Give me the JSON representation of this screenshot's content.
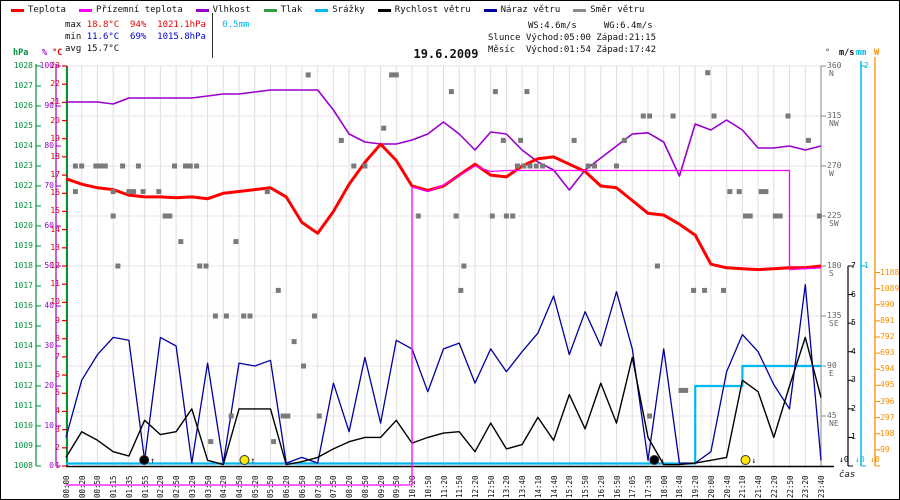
{
  "header": {
    "legend": [
      {
        "label": "Teplota",
        "color": "#ff0000"
      },
      {
        "label": "Přízemní teplota",
        "color": "#ff00ff"
      },
      {
        "label": "Vlhkost",
        "color": "#9900cc"
      },
      {
        "label": "Tlak",
        "color": "#2e9e40"
      },
      {
        "label": "Srážky",
        "color": "#00b8f0"
      },
      {
        "label": "Rychlost větru",
        "color": "#000000"
      },
      {
        "label": "Náraz větru",
        "color": "#0000a0"
      },
      {
        "label": "Směr větru",
        "color": "#8a8a8a"
      }
    ],
    "stats": {
      "max_label": "max",
      "max_temp": "18.8°C",
      "max_hum": "94%",
      "max_pres": "1021.1hPa",
      "max_rain": "0.5mm",
      "min_label": "min",
      "min_temp": "11.6°C",
      "min_hum": "69%",
      "min_pres": "1015.8hPa",
      "avg_label": "avg",
      "avg_temp": "15.7°C"
    },
    "wind_stats": {
      "ws": "WS:4.6m/s",
      "wg": "WG:6.4m/s"
    },
    "sun": {
      "name": "Slunce",
      "rise": "Východ:05:00",
      "set": "Západ:21:15"
    },
    "moon": {
      "name": "Měsíc",
      "rise": "Východ:01:54",
      "set": "Západ:17:42"
    },
    "title": "19.6.2009"
  },
  "axes": {
    "hpa": {
      "unit": "hPa",
      "color": "#008f3c",
      "values": [
        1028,
        1027,
        1026,
        1025,
        1024,
        1023,
        1022,
        1021,
        1020,
        1019,
        1018,
        1017,
        1016,
        1015,
        1014,
        1013,
        1012,
        1011,
        1010,
        1009,
        1008
      ]
    },
    "humidity": {
      "unit": "%",
      "color": "#9900cc",
      "values": [
        100,
        90,
        80,
        70,
        60,
        50,
        40,
        30,
        20,
        10,
        0
      ]
    },
    "celsius": {
      "unit": "°C",
      "color": "#e00000",
      "values": [
        23,
        22,
        21,
        20,
        19,
        18,
        17,
        16,
        15,
        14,
        13,
        12,
        11,
        10,
        9,
        8,
        7,
        6,
        5,
        4,
        3,
        2,
        1
      ]
    },
    "direction": {
      "unit": "°",
      "color": "#666666",
      "values": [
        [
          360,
          "N"
        ],
        [
          315,
          "NW"
        ],
        [
          270,
          "W"
        ],
        [
          225,
          "SW"
        ],
        [
          180,
          "S"
        ],
        [
          135,
          "SE"
        ],
        [
          90,
          "E"
        ],
        [
          45,
          "NE"
        ]
      ]
    },
    "wind_ms": {
      "unit": "m/s",
      "color": "#000000",
      "values": [
        7,
        6,
        5,
        4,
        3,
        2,
        1
      ]
    },
    "rain_mm": {
      "unit": "mm",
      "color": "#00b8f0",
      "values": [
        2,
        1
      ]
    },
    "radiation_w": {
      "unit": "W",
      "color": "#ff8c00",
      "values": [
        1188,
        1089,
        990,
        891,
        792,
        693,
        594,
        495,
        396,
        297,
        198,
        99
      ]
    },
    "time": {
      "unit": "čas",
      "labels": [
        "00:00",
        "00:20",
        "00:50",
        "01:15",
        "01:35",
        "01:55",
        "02:20",
        "02:50",
        "03:20",
        "03:50",
        "04:20",
        "04:50",
        "05:20",
        "05:50",
        "06:20",
        "06:50",
        "07:20",
        "07:50",
        "08:20",
        "08:50",
        "09:20",
        "09:50",
        "10:20",
        "10:50",
        "11:20",
        "11:50",
        "12:20",
        "12:50",
        "13:20",
        "13:40",
        "14:10",
        "14:40",
        "15:20",
        "15:50",
        "16:20",
        "16:50",
        "17:05",
        "17:30",
        "18:00",
        "18:40",
        "19:20",
        "20:00",
        "20:40",
        "21:10",
        "21:40",
        "22:20",
        "22:50",
        "23:20",
        "23:40"
      ]
    },
    "axis_zero_labels": [
      {
        "text": "↓0",
        "color": "#000000"
      },
      {
        "text": "↓0",
        "color": "#00b8f0"
      },
      {
        "text": "↓0",
        "color": "#ff8c00"
      }
    ]
  },
  "chart_data": {
    "type": "line",
    "title": "19.6.2009",
    "x_labels": [
      "00:00",
      "00:20",
      "00:50",
      "01:15",
      "01:35",
      "01:55",
      "02:20",
      "02:50",
      "03:20",
      "03:50",
      "04:20",
      "04:50",
      "05:20",
      "05:50",
      "06:20",
      "06:50",
      "07:20",
      "07:50",
      "08:20",
      "08:50",
      "09:20",
      "09:50",
      "10:20",
      "10:50",
      "11:20",
      "11:50",
      "12:20",
      "12:50",
      "13:20",
      "13:40",
      "14:10",
      "14:40",
      "15:20",
      "15:50",
      "16:20",
      "16:50",
      "17:05",
      "17:30",
      "18:00",
      "18:40",
      "19:20",
      "20:00",
      "20:40",
      "21:10",
      "21:40",
      "22:20",
      "22:50",
      "23:20",
      "23:40"
    ],
    "axis_ranges": {
      "celsius": [
        1,
        23
      ],
      "humidity_pct": [
        0,
        100
      ],
      "pressure_hpa": [
        1008,
        1028
      ],
      "direction_deg": [
        0,
        360
      ],
      "wind_ms": [
        0,
        7
      ],
      "rain_mm": [
        0,
        2
      ],
      "radiation_w": [
        0,
        1188
      ]
    },
    "series": [
      {
        "name": "Teplota",
        "unit": "°C",
        "color": "#ff0000",
        "width": 3,
        "values": [
          16.8,
          16.5,
          16.3,
          16.2,
          15.9,
          15.8,
          15.8,
          15.75,
          15.8,
          15.7,
          16.0,
          16.1,
          16.2,
          16.3,
          15.8,
          14.4,
          13.8,
          15.0,
          16.5,
          17.7,
          18.7,
          17.8,
          16.4,
          16.15,
          16.4,
          17.0,
          17.6,
          17.0,
          16.9,
          17.5,
          17.9,
          18.0,
          17.6,
          17.2,
          16.4,
          16.3,
          15.6,
          14.9,
          14.8,
          14.3,
          13.7,
          12.1,
          11.9,
          11.85,
          11.8,
          11.85,
          11.9,
          11.9,
          12.0
        ]
      },
      {
        "name": "Přízemní teplota",
        "unit": "°C",
        "color": "#ff00ff",
        "width": 1.3,
        "values": [
          null,
          null,
          null,
          null,
          null,
          null,
          null,
          null,
          null,
          null,
          null,
          null,
          null,
          null,
          null,
          null,
          null,
          null,
          null,
          null,
          null,
          null,
          16.35,
          16.1,
          16.45,
          16.95,
          17.5,
          17.2,
          17.25,
          17.25,
          17.25,
          17.25,
          17.25,
          17.25,
          17.25,
          17.25,
          17.25,
          17.25,
          17.25,
          17.25,
          17.25,
          17.25,
          17.25,
          17.25,
          17.25,
          17.25,
          11.8,
          11.85,
          11.9
        ]
      },
      {
        "name": "Vlhkost",
        "unit": "%",
        "color": "#9900cc",
        "width": 1.6,
        "values": [
          91,
          91,
          91,
          90.5,
          92,
          92,
          92,
          92,
          92,
          92.5,
          93,
          93,
          93.5,
          94,
          94,
          94,
          94,
          89,
          83,
          81,
          80.5,
          80.5,
          81.5,
          83,
          86,
          83,
          79,
          83.5,
          83,
          79,
          76,
          74,
          69,
          74,
          77,
          80,
          83,
          83.3,
          81,
          72.5,
          85.5,
          84,
          86.5,
          84,
          79.5,
          79.5,
          80,
          79,
          80
        ]
      },
      {
        "name": "Rychlost větru",
        "unit": "m/s",
        "color": "#000000",
        "width": 1.4,
        "values": [
          0.3,
          1.2,
          0.9,
          0.5,
          0.35,
          1.6,
          1.1,
          1.2,
          2.0,
          0.2,
          0.05,
          2.0,
          2.0,
          2.0,
          0.05,
          0.15,
          0.3,
          0.6,
          0.85,
          1.0,
          1.0,
          1.6,
          0.8,
          1.0,
          1.15,
          1.2,
          0.5,
          1.5,
          0.6,
          0.75,
          1.7,
          0.9,
          2.5,
          1.3,
          2.9,
          1.5,
          3.8,
          1.0,
          0.05,
          0.05,
          0.1,
          0.2,
          0.3,
          3.0,
          2.6,
          1.0,
          2.8,
          4.5,
          2.4
        ]
      },
      {
        "name": "Náraz větru",
        "unit": "m/s",
        "color": "#0000a0",
        "width": 1.3,
        "values": [
          1.0,
          3.0,
          3.9,
          4.5,
          4.4,
          0.2,
          4.5,
          4.2,
          0.1,
          3.6,
          0.1,
          3.6,
          3.5,
          3.7,
          0.1,
          0.3,
          0.1,
          2.9,
          1.2,
          3.8,
          1.5,
          4.4,
          4.1,
          2.6,
          4.1,
          4.3,
          2.9,
          4.1,
          3.3,
          4.0,
          4.65,
          5.95,
          3.9,
          5.4,
          4.2,
          6.1,
          4.1,
          0.2,
          4.1,
          0.1,
          0.1,
          0.5,
          3.3,
          4.6,
          4.0,
          2.85,
          2.0,
          6.35,
          0.2
        ]
      },
      {
        "name": "Srážky",
        "unit": "mm",
        "color": "#00b8f0",
        "width": 2.2,
        "style": "step",
        "values": [
          0,
          0,
          0,
          0,
          0,
          0,
          0,
          0,
          0,
          0,
          0,
          0,
          0,
          0,
          0,
          0,
          0,
          0,
          0,
          0,
          0,
          0,
          0,
          0,
          0,
          0,
          0,
          0,
          0,
          0,
          0,
          0,
          0,
          0,
          0,
          0,
          0,
          0,
          0,
          0,
          0.4,
          0.4,
          0.4,
          0.5,
          0.5,
          0.5,
          0.5,
          0.5,
          0.5
        ]
      }
    ],
    "wind_direction_points_deg": [
      [
        0.6,
        270
      ],
      [
        1.0,
        270
      ],
      [
        1.9,
        270
      ],
      [
        2.2,
        270
      ],
      [
        2.5,
        270
      ],
      [
        3.6,
        270
      ],
      [
        4.6,
        270
      ],
      [
        6.9,
        270
      ],
      [
        7.6,
        270
      ],
      [
        7.9,
        270
      ],
      [
        8.3,
        270
      ],
      [
        0.6,
        247
      ],
      [
        3.0,
        247
      ],
      [
        4.0,
        247
      ],
      [
        4.3,
        247
      ],
      [
        4.9,
        247
      ],
      [
        5.9,
        247
      ],
      [
        12.8,
        247
      ],
      [
        3.0,
        225
      ],
      [
        6.3,
        225
      ],
      [
        6.6,
        225
      ],
      [
        7.3,
        202
      ],
      [
        10.8,
        202
      ],
      [
        3.3,
        180
      ],
      [
        8.5,
        180
      ],
      [
        8.9,
        180
      ],
      [
        25.3,
        180
      ],
      [
        37.6,
        180
      ],
      [
        13.5,
        158
      ],
      [
        25.1,
        158
      ],
      [
        39.9,
        158
      ],
      [
        40.6,
        158
      ],
      [
        41.8,
        158
      ],
      [
        9.5,
        135
      ],
      [
        10.2,
        135
      ],
      [
        11.3,
        135
      ],
      [
        11.7,
        135
      ],
      [
        15.8,
        135
      ],
      [
        14.5,
        112
      ],
      [
        15.1,
        90
      ],
      [
        39.1,
        68
      ],
      [
        39.4,
        68
      ],
      [
        10.5,
        45
      ],
      [
        13.8,
        45
      ],
      [
        14.1,
        45
      ],
      [
        16.1,
        45
      ],
      [
        37.1,
        45
      ],
      [
        9.2,
        22
      ],
      [
        13.2,
        22
      ],
      [
        15.4,
        352
      ],
      [
        20.7,
        352
      ],
      [
        21.0,
        352
      ],
      [
        40.8,
        354
      ],
      [
        24.5,
        337
      ],
      [
        27.3,
        337
      ],
      [
        29.3,
        337
      ],
      [
        36.7,
        315
      ],
      [
        37.1,
        315
      ],
      [
        38.6,
        315
      ],
      [
        41.2,
        315
      ],
      [
        45.9,
        315
      ],
      [
        27.8,
        293
      ],
      [
        28.9,
        293
      ],
      [
        32.3,
        293
      ],
      [
        35.5,
        293
      ],
      [
        47.2,
        293
      ],
      [
        17.5,
        293
      ],
      [
        20.2,
        304
      ],
      [
        28.7,
        270
      ],
      [
        29.1,
        270
      ],
      [
        29.5,
        270
      ],
      [
        29.9,
        270
      ],
      [
        30.3,
        270
      ],
      [
        33.2,
        270
      ],
      [
        33.6,
        270
      ],
      [
        35.0,
        270
      ],
      [
        18.3,
        270
      ],
      [
        19.0,
        270
      ],
      [
        22.4,
        225
      ],
      [
        24.8,
        225
      ],
      [
        27.1,
        225
      ],
      [
        28.0,
        225
      ],
      [
        28.4,
        225
      ],
      [
        43.2,
        225
      ],
      [
        43.5,
        225
      ],
      [
        45.1,
        225
      ],
      [
        45.4,
        225
      ],
      [
        47.9,
        225
      ],
      [
        42.2,
        247
      ],
      [
        42.8,
        247
      ],
      [
        44.2,
        247
      ],
      [
        44.5,
        247
      ]
    ],
    "markers": [
      {
        "name": "moonrise-marker",
        "time": "01:54",
        "i": 4.97,
        "fill": "#000000",
        "arrow": "↑"
      },
      {
        "name": "sunrise-marker",
        "time": "05:00",
        "i": 11.35,
        "fill": "#ffe800",
        "arrow": "↑"
      },
      {
        "name": "moonset-marker",
        "time": "17:42",
        "i": 37.4,
        "fill": "#000000",
        "arrow": "↓"
      },
      {
        "name": "sunset-marker",
        "time": "21:15",
        "i": 43.2,
        "fill": "#ffe800",
        "arrow": "↓"
      }
    ],
    "notes": "Ground-temperature trace is drawn off-scale below the plot (y=484) before 10:20; vertical riser at 10:20 and vertical drop at 22:50. Legend pressure (Tlak, green) has no visible curve; green left plot border only."
  }
}
